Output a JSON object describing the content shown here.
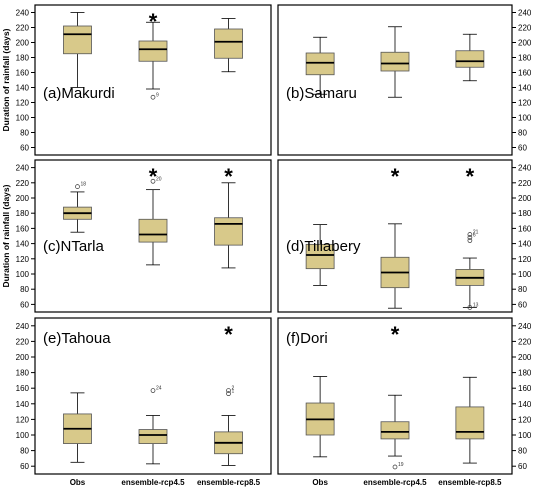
{
  "figure": {
    "ylabel": "Duration of rainfall (days)",
    "categories": [
      "Obs",
      "ensemble-rcp4.5",
      "ensemble-rcp8.5"
    ],
    "box_color": "#d8c98a",
    "box_stroke": "#555555",
    "star_symbol": "*"
  },
  "chart_data": [
    {
      "type": "box",
      "label": "(a)Makurdi",
      "categories": [
        "Obs",
        "ensemble-rcp4.5",
        "ensemble-rcp8.5"
      ],
      "ylabel": "Duration of rainfall (days)",
      "ylim": [
        50,
        250
      ],
      "ticks": [
        60,
        80,
        100,
        120,
        140,
        160,
        180,
        200,
        220,
        240
      ],
      "boxes": [
        {
          "min": 140,
          "q1": 185,
          "median": 211,
          "q3": 222,
          "max": 240,
          "outliers": []
        },
        {
          "min": 138,
          "q1": 175,
          "median": 191,
          "q3": 202,
          "max": 227,
          "outliers": [
            {
              "value": 127,
              "label": "9"
            }
          ]
        },
        {
          "min": 161,
          "q1": 179,
          "median": 201,
          "q3": 218,
          "max": 232,
          "outliers": []
        }
      ],
      "significant": [
        false,
        true,
        false
      ]
    },
    {
      "type": "box",
      "label": "(b)Samaru",
      "categories": [
        "Obs",
        "ensemble-rcp4.5",
        "ensemble-rcp8.5"
      ],
      "ylabel": "Duration of rainfall (days)",
      "ylim": [
        50,
        250
      ],
      "ticks": [
        60,
        80,
        100,
        120,
        140,
        160,
        180,
        200,
        220,
        240
      ],
      "boxes": [
        {
          "min": 131,
          "q1": 157,
          "median": 173,
          "q3": 186,
          "max": 207,
          "outliers": []
        },
        {
          "min": 127,
          "q1": 162,
          "median": 172,
          "q3": 187,
          "max": 221,
          "outliers": []
        },
        {
          "min": 149,
          "q1": 167,
          "median": 175,
          "q3": 189,
          "max": 211,
          "outliers": []
        }
      ],
      "significant": [
        false,
        false,
        false
      ]
    },
    {
      "type": "box",
      "label": "(c)NTarla",
      "categories": [
        "Obs",
        "ensemble-rcp4.5",
        "ensemble-rcp8.5"
      ],
      "ylabel": "Duration of rainfall (days)",
      "ylim": [
        50,
        250
      ],
      "ticks": [
        60,
        80,
        100,
        120,
        140,
        160,
        180,
        200,
        220,
        240
      ],
      "boxes": [
        {
          "min": 155,
          "q1": 172,
          "median": 180,
          "q3": 188,
          "max": 208,
          "outliers": [
            {
              "value": 215,
              "label": "18"
            }
          ]
        },
        {
          "min": 112,
          "q1": 142,
          "median": 152,
          "q3": 172,
          "max": 211,
          "outliers": [
            {
              "value": 222,
              "label": "20"
            }
          ]
        },
        {
          "min": 108,
          "q1": 138,
          "median": 166,
          "q3": 174,
          "max": 220,
          "outliers": []
        }
      ],
      "significant": [
        false,
        true,
        true
      ]
    },
    {
      "type": "box",
      "label": "(d)Tillabery",
      "categories": [
        "Obs",
        "ensemble-rcp4.5",
        "ensemble-rcp8.5"
      ],
      "ylabel": "Duration of rainfall (days)",
      "ylim": [
        50,
        250
      ],
      "ticks": [
        60,
        80,
        100,
        120,
        140,
        160,
        180,
        200,
        220,
        240
      ],
      "boxes": [
        {
          "min": 85,
          "q1": 107,
          "median": 125,
          "q3": 139,
          "max": 165,
          "outliers": []
        },
        {
          "min": 55,
          "q1": 82,
          "median": 102,
          "q3": 122,
          "max": 166,
          "outliers": []
        },
        {
          "min": 56,
          "q1": 85,
          "median": 95,
          "q3": 106,
          "max": 121,
          "outliers": [
            {
              "value": 152,
              "label": "21"
            },
            {
              "value": 148,
              "label": "6"
            },
            {
              "value": 144,
              "label": ""
            },
            {
              "value": 56,
              "label": "13"
            }
          ]
        }
      ],
      "significant": [
        false,
        true,
        true
      ]
    },
    {
      "type": "box",
      "label": "(e)Tahoua",
      "categories": [
        "Obs",
        "ensemble-rcp4.5",
        "ensemble-rcp8.5"
      ],
      "ylabel": "",
      "ylim": [
        50,
        250
      ],
      "ticks": [
        60,
        80,
        100,
        120,
        140,
        160,
        180,
        200,
        220,
        240
      ],
      "boxes": [
        {
          "min": 65,
          "q1": 89,
          "median": 108,
          "q3": 127,
          "max": 154,
          "outliers": []
        },
        {
          "min": 63,
          "q1": 89,
          "median": 100,
          "q3": 107,
          "max": 125,
          "outliers": [
            {
              "value": 157,
              "label": "24"
            }
          ]
        },
        {
          "min": 61,
          "q1": 76,
          "median": 90,
          "q3": 104,
          "max": 125,
          "outliers": [
            {
              "value": 157,
              "label": "2"
            },
            {
              "value": 153,
              "label": "1"
            }
          ]
        }
      ],
      "significant": [
        false,
        false,
        true
      ]
    },
    {
      "type": "box",
      "label": "(f)Dori",
      "categories": [
        "Obs",
        "ensemble-rcp4.5",
        "ensemble-rcp8.5"
      ],
      "ylabel": "",
      "ylim": [
        50,
        250
      ],
      "ticks": [
        60,
        80,
        100,
        120,
        140,
        160,
        180,
        200,
        220,
        240
      ],
      "boxes": [
        {
          "min": 72,
          "q1": 100,
          "median": 120,
          "q3": 141,
          "max": 175,
          "outliers": []
        },
        {
          "min": 73,
          "q1": 95,
          "median": 104,
          "q3": 117,
          "max": 151,
          "outliers": [
            {
              "value": 59,
              "label": "19"
            }
          ]
        },
        {
          "min": 64,
          "q1": 95,
          "median": 104,
          "q3": 136,
          "max": 174,
          "outliers": []
        }
      ],
      "significant": [
        false,
        true,
        false
      ]
    }
  ]
}
